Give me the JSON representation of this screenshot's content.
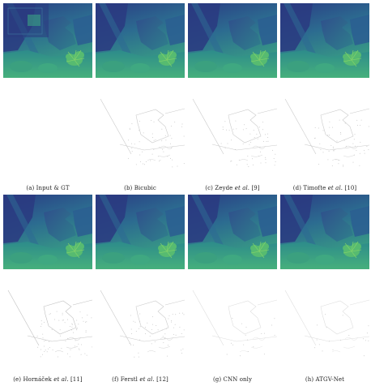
{
  "figure": {
    "row1": [
      {
        "caption": "(a) Input & GT",
        "pre": "(a) Input & GT",
        "em": "",
        "post": "",
        "inset": true,
        "noise": 0
      },
      {
        "caption": "(b) Bicubic",
        "pre": "(b) Bicubic",
        "em": "",
        "post": "",
        "inset": false,
        "noise": 3
      },
      {
        "caption": "(c) Zeyde et al. [9]",
        "pre": "(c) Zeyde ",
        "em": "et al.",
        "post": " [9]",
        "inset": false,
        "noise": 3
      },
      {
        "caption": "(d) Timofte et al. [10]",
        "pre": "(d) Timofte ",
        "em": "et al.",
        "post": " [10]",
        "inset": false,
        "noise": 3
      }
    ],
    "row2": [
      {
        "caption": "(e) Hornáček et al. [11]",
        "pre": "(e) Hornáček ",
        "em": "et al.",
        "post": " [11]",
        "inset": false,
        "noise": 4
      },
      {
        "caption": "(f) Ferstl et al. [12]",
        "pre": "(f) Ferstl ",
        "em": "et al.",
        "post": " [12]",
        "inset": false,
        "noise": 3
      },
      {
        "caption": "(g) CNN only",
        "pre": "(g) CNN only",
        "em": "",
        "post": "",
        "inset": false,
        "noise": 1
      },
      {
        "caption": "(h) ATGV-Net",
        "pre": "(h) ATGV-Net",
        "em": "",
        "post": "",
        "inset": false,
        "noise": 1
      }
    ]
  },
  "colors": {
    "deep_blue": "#2b3f86",
    "mid_blue": "#2f5a93",
    "teal": "#2a7f8e",
    "green": "#3aa383",
    "light_green": "#5cbf6e",
    "error_line": "#b8b8b8"
  }
}
